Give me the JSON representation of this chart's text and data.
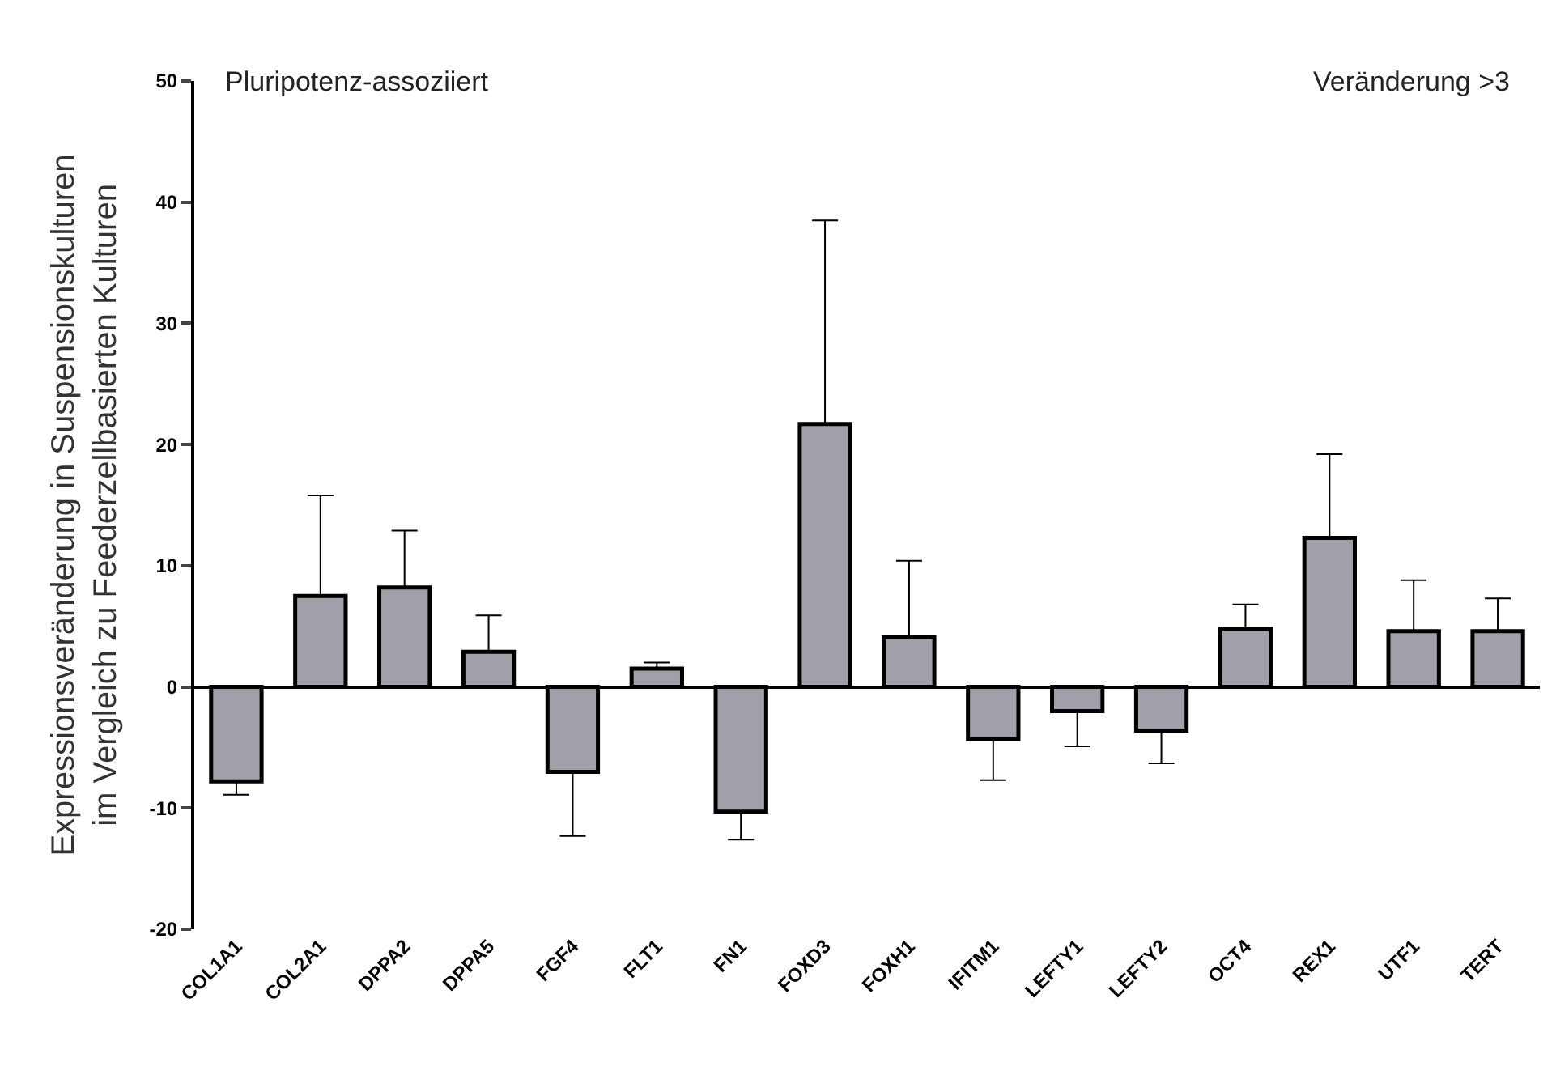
{
  "chart_data": {
    "type": "bar",
    "ylabel": "Expressionsveränderung in Suspensionskulturen\nim Vergleich zu Feederzellbasierten Kulturen",
    "categories": [
      "COL1A1",
      "COL2A1",
      "DPPA2",
      "DPPA5",
      "FGF4",
      "FLT1",
      "FN1",
      "FOXD3",
      "FOXH1",
      "IFITM1",
      "LEFTY1",
      "LEFTY2",
      "OCT4",
      "REX1",
      "UTF1",
      "TERT"
    ],
    "values": [
      -7.8,
      7.5,
      8.2,
      2.9,
      -7.0,
      1.5,
      -10.3,
      21.7,
      4.1,
      -4.3,
      -2.0,
      -3.6,
      4.8,
      12.3,
      4.6,
      4.6
    ],
    "errors": [
      [
        -8.9,
        -7.8
      ],
      [
        7.5,
        15.8
      ],
      [
        8.2,
        12.9
      ],
      [
        2.9,
        5.9
      ],
      [
        -12.3,
        -7.0
      ],
      [
        1.5,
        2.0
      ],
      [
        -12.6,
        -10.3
      ],
      [
        21.7,
        38.5
      ],
      [
        4.1,
        10.4
      ],
      [
        -7.7,
        -4.3
      ],
      [
        -4.9,
        -2.0
      ],
      [
        -6.3,
        -3.6
      ],
      [
        4.8,
        6.8
      ],
      [
        12.3,
        19.2
      ],
      [
        4.6,
        8.8
      ],
      [
        4.6,
        7.3
      ]
    ],
    "color": "#a0a0a8",
    "ylim": [
      -20,
      50
    ],
    "yticks": [
      -20,
      -10,
      0,
      10,
      20,
      30,
      40,
      50
    ],
    "annotations": [
      "Pluripotenz-assoziiert",
      "Veränderung >3"
    ]
  }
}
